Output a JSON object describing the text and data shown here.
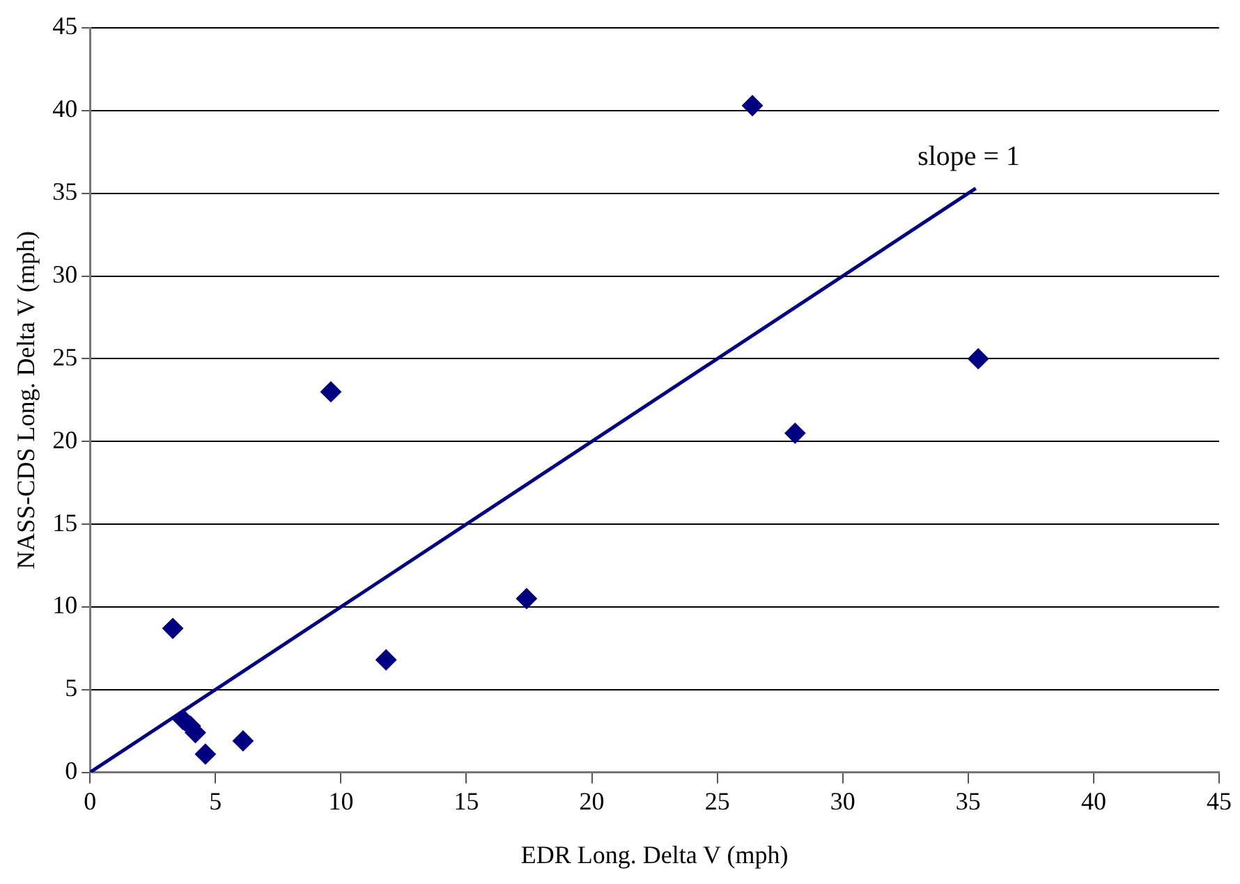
{
  "chart_data": {
    "type": "scatter",
    "xlabel": "EDR Long. Delta V (mph)",
    "ylabel": "NASS-CDS Long. Delta V (mph)",
    "x": [
      3.3,
      3.7,
      4.0,
      4.2,
      4.6,
      6.1,
      9.6,
      11.8,
      17.4,
      26.4,
      28.1,
      35.4
    ],
    "series": [
      {
        "color": "#000080",
        "marker": "diamond",
        "values": [
          8.7,
          3.2,
          2.8,
          2.4,
          1.1,
          1.9,
          23.0,
          6.8,
          10.5,
          40.3,
          20.5,
          25.0
        ]
      },
      {
        "type": "line",
        "color": "#000080",
        "marker": "none",
        "line_style": "solid",
        "x": [
          0,
          35.3
        ],
        "values": [
          0,
          35.3
        ]
      }
    ],
    "annotations": [
      "slope = 1"
    ],
    "xlim": [
      0,
      45
    ],
    "xticks": [
      0,
      5,
      10,
      15,
      20,
      25,
      30,
      35,
      40,
      45
    ],
    "ylim": [
      0,
      45
    ],
    "yticks": [
      0,
      5,
      10,
      15,
      20,
      25,
      30,
      35,
      40,
      45
    ],
    "grid": "y",
    "legend": false
  }
}
